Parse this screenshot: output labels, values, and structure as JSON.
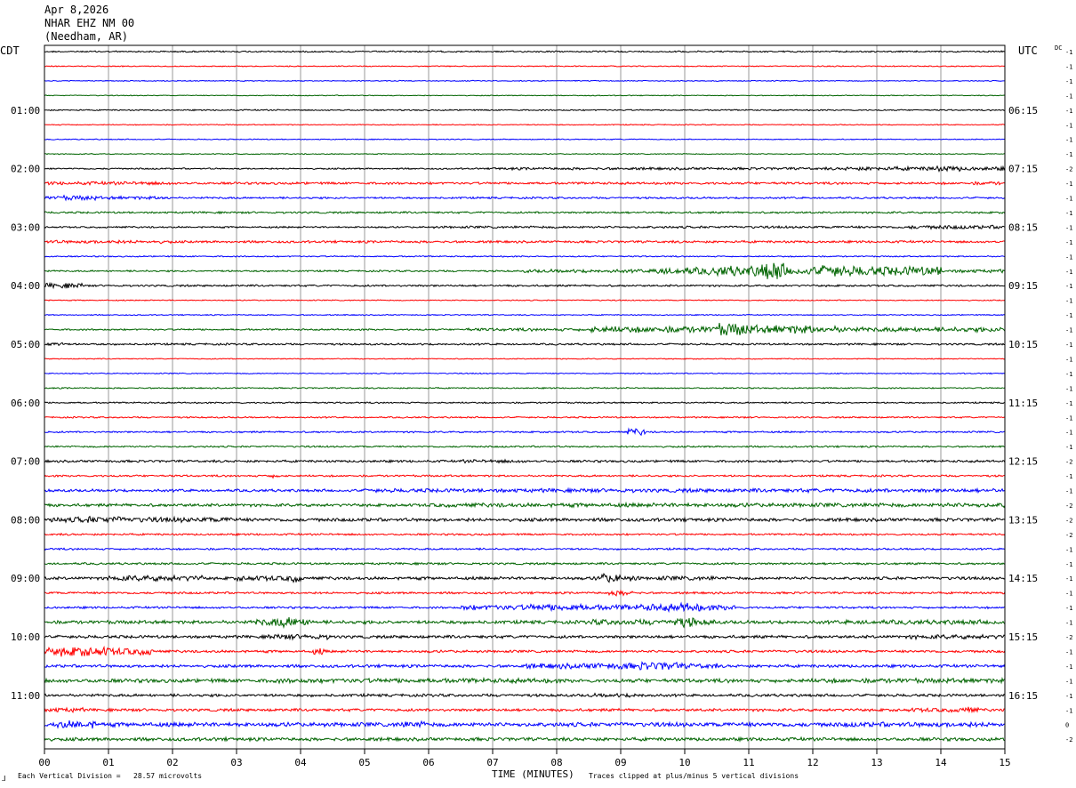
{
  "header": {
    "date": "Apr 8,2026",
    "station": "NHAR EHZ NM 00",
    "location": "(Needham, AR)"
  },
  "left_zone": "CDT",
  "right_zone": "UTC",
  "dc_label": "DC",
  "footer": {
    "marker": "⅃",
    "scale_note": "Each Vertical Division =   28.57 microvolts",
    "xaxis_label": "TIME (MINUTES)",
    "clip_note": "Traces clipped at plus/minus 5 vertical divisions"
  },
  "colors": {
    "cycle": [
      "#000000",
      "#ff0000",
      "#0000ff",
      "#006400"
    ]
  },
  "chart_data": {
    "type": "helicorder",
    "x_ticks": [
      "00",
      "01",
      "02",
      "03",
      "04",
      "05",
      "06",
      "07",
      "08",
      "09",
      "10",
      "11",
      "12",
      "13",
      "14",
      "15"
    ],
    "xlim": [
      0,
      15
    ],
    "left_hour_labels": [
      "01:00",
      "02:00",
      "03:00",
      "04:00",
      "05:00",
      "06:00",
      "07:00",
      "08:00",
      "09:00",
      "10:00",
      "11:00"
    ],
    "right_hour_labels": [
      "06:15",
      "07:15",
      "08:15",
      "09:15",
      "10:15",
      "11:15",
      "12:15",
      "13:15",
      "14:15",
      "15:15",
      "16:15"
    ],
    "dc_offsets": [
      "-1",
      "-1",
      "-1",
      "-1",
      "-1",
      "-1",
      "-1",
      "-1",
      "-2",
      "-1",
      "-1",
      "-1",
      "-1",
      "-1",
      "-1",
      "-1",
      "-1",
      "-1",
      "-1",
      "-1",
      "-1",
      "-1",
      "-1",
      "-1",
      "-1",
      "-1",
      "-1",
      "-1",
      "-2",
      "-1",
      "-1",
      "-2",
      "-2",
      "-2",
      "-1",
      "-1",
      "-1",
      "-1",
      "-1",
      "-1",
      "-2",
      "-1",
      "-1",
      "-1",
      "-1",
      "-1",
      "0",
      "-2"
    ],
    "activity": [
      [
        [
          0,
          15,
          0.7
        ]
      ],
      [
        [
          0,
          15,
          0.5
        ]
      ],
      [
        [
          0,
          15,
          0.45
        ]
      ],
      [
        [
          0,
          15,
          0.4
        ]
      ],
      [
        [
          0,
          15,
          0.6
        ]
      ],
      [
        [
          0,
          15,
          0.45
        ]
      ],
      [
        [
          0,
          15,
          0.45
        ]
      ],
      [
        [
          0,
          15,
          0.45
        ]
      ],
      [
        [
          0,
          15,
          0.7
        ],
        [
          7,
          15,
          1.2
        ],
        [
          12.5,
          15,
          1.8
        ],
        [
          13.8,
          14.3,
          2.6
        ]
      ],
      [
        [
          0,
          15,
          1.1
        ],
        [
          0,
          2,
          1.6
        ],
        [
          14.5,
          15,
          1.6
        ]
      ],
      [
        [
          0,
          15,
          0.9
        ],
        [
          0.2,
          0.8,
          2.2
        ],
        [
          0,
          2,
          1.5
        ]
      ],
      [
        [
          0,
          15,
          0.9
        ]
      ],
      [
        [
          0,
          15,
          0.8
        ],
        [
          6,
          15,
          1.1
        ],
        [
          13.5,
          15,
          1.8
        ]
      ],
      [
        [
          0,
          15,
          1.1
        ],
        [
          0,
          2,
          1.6
        ]
      ],
      [
        [
          0,
          15,
          0.6
        ]
      ],
      [
        [
          0,
          15,
          0.8
        ],
        [
          7.5,
          15,
          1.6
        ],
        [
          9.5,
          12.5,
          3.5
        ],
        [
          10.5,
          11.5,
          5
        ],
        [
          11.2,
          11.6,
          9
        ],
        [
          12,
          14,
          4.5
        ],
        [
          12.1,
          12.5,
          5.5
        ],
        [
          13,
          13.4,
          4.5
        ]
      ],
      [
        [
          0,
          15,
          0.9
        ],
        [
          0,
          0.6,
          2.4
        ]
      ],
      [
        [
          0,
          15,
          0.5
        ]
      ],
      [
        [
          0,
          15,
          0.5
        ]
      ],
      [
        [
          0,
          15,
          0.8
        ],
        [
          6.5,
          15,
          1.4
        ],
        [
          8.5,
          12.5,
          3
        ],
        [
          10.5,
          11,
          6
        ],
        [
          11,
          12,
          4
        ],
        [
          12,
          15,
          2.2
        ]
      ],
      [
        [
          0,
          15,
          0.9
        ],
        [
          0,
          0.3,
          2.2
        ]
      ],
      [
        [
          0,
          15,
          0.45
        ]
      ],
      [
        [
          0,
          15,
          0.5
        ]
      ],
      [
        [
          0,
          15,
          0.6
        ]
      ],
      [
        [
          0,
          15,
          0.7
        ]
      ],
      [
        [
          0,
          15,
          0.7
        ]
      ],
      [
        [
          0,
          15,
          0.8
        ],
        [
          9.1,
          9.4,
          3
        ]
      ],
      [
        [
          0,
          15,
          0.8
        ]
      ],
      [
        [
          0,
          15,
          1.1
        ],
        [
          6.5,
          7.5,
          1.6
        ]
      ],
      [
        [
          0,
          15,
          0.9
        ],
        [
          3.5,
          3.7,
          1.8
        ]
      ],
      [
        [
          0,
          15,
          1.3
        ],
        [
          5,
          15,
          1.8
        ]
      ],
      [
        [
          0,
          15,
          1.4
        ],
        [
          6,
          15,
          1.9
        ],
        [
          14,
          15,
          2.2
        ]
      ],
      [
        [
          0,
          15,
          1.6
        ],
        [
          0,
          3,
          2.4
        ],
        [
          0.5,
          1.2,
          3.2
        ]
      ],
      [
        [
          0,
          15,
          0.9
        ]
      ],
      [
        [
          0,
          15,
          0.9
        ]
      ],
      [
        [
          0,
          15,
          1.0
        ]
      ],
      [
        [
          0,
          15,
          1.4
        ],
        [
          1,
          2.5,
          2.6
        ],
        [
          3,
          4,
          2.4
        ],
        [
          3.8,
          4.0,
          3.8
        ],
        [
          8.6,
          9.3,
          2.8
        ],
        [
          8.7,
          8.95,
          4.5
        ],
        [
          9.5,
          10.5,
          2
        ]
      ],
      [
        [
          0,
          15,
          1.0
        ],
        [
          8.8,
          9.2,
          2.6
        ]
      ],
      [
        [
          0,
          15,
          1.0
        ],
        [
          6.5,
          10.8,
          2.6
        ],
        [
          7.5,
          8.5,
          3.2
        ],
        [
          9.3,
          10.3,
          3.5
        ],
        [
          9.9,
          10.2,
          4.5
        ]
      ],
      [
        [
          0,
          15,
          1.6
        ],
        [
          3.3,
          4.2,
          3.4
        ],
        [
          3.6,
          4,
          5
        ],
        [
          8.5,
          10.5,
          2.6
        ],
        [
          9.8,
          10.2,
          4.5
        ],
        [
          12.5,
          15,
          2.2
        ]
      ],
      [
        [
          0,
          15,
          1.4
        ],
        [
          3.5,
          4.5,
          2.4
        ],
        [
          13.5,
          15,
          2
        ]
      ],
      [
        [
          0,
          15,
          1.2
        ],
        [
          0,
          1.7,
          3.5
        ],
        [
          0.2,
          1,
          4.6
        ],
        [
          4.2,
          4.4,
          3
        ]
      ],
      [
        [
          0,
          15,
          1.4
        ],
        [
          7.5,
          10.5,
          2.5
        ],
        [
          8.5,
          9.5,
          3
        ],
        [
          9.3,
          9.9,
          4
        ]
      ],
      [
        [
          0,
          15,
          1.8
        ],
        [
          3.5,
          8,
          2.2
        ],
        [
          12,
          15,
          2.2
        ]
      ],
      [
        [
          0,
          15,
          1.3
        ],
        [
          8.5,
          9.5,
          1.8
        ]
      ],
      [
        [
          0,
          15,
          1.3
        ],
        [
          0,
          0.6,
          2.2
        ],
        [
          13.5,
          14.6,
          2
        ],
        [
          14.3,
          14.5,
          3.2
        ]
      ],
      [
        [
          0,
          15,
          2.0
        ],
        [
          0.2,
          0.8,
          3.8
        ],
        [
          5.5,
          6,
          3
        ],
        [
          12.5,
          15,
          2.4
        ]
      ],
      [
        [
          0,
          15,
          1.6
        ]
      ]
    ]
  }
}
